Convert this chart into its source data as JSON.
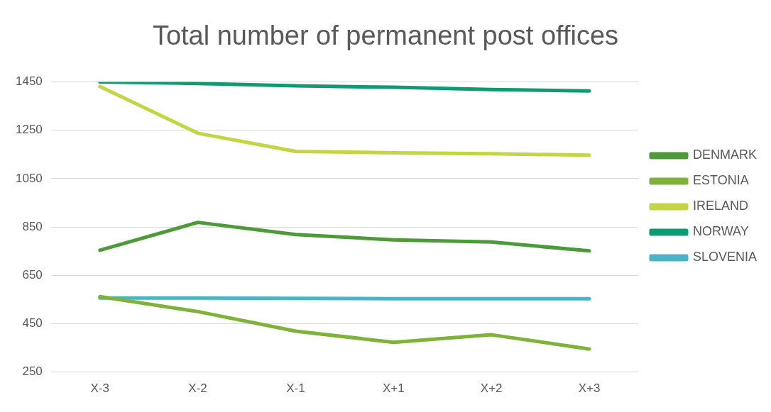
{
  "chart_data": {
    "type": "line",
    "title": "Total number of permanent post offices",
    "categories": [
      "X-3",
      "X-2",
      "X-1",
      "X+1",
      "X+2",
      "X+3"
    ],
    "series": [
      {
        "name": "DENMARK",
        "color": "#4e9a3a",
        "values": [
          754,
          869,
          819,
          797,
          788,
          751
        ]
      },
      {
        "name": "ESTONIA",
        "color": "#7fb23a",
        "values": [
          562,
          500,
          419,
          373,
          404,
          345
        ]
      },
      {
        "name": "IRELAND",
        "color": "#c3d544",
        "values": [
          1431,
          1238,
          1163,
          1157,
          1153,
          1147
        ]
      },
      {
        "name": "NORWAY",
        "color": "#109a72",
        "values": [
          1450,
          1444,
          1434,
          1428,
          1419,
          1413
        ]
      },
      {
        "name": "SLOVENIA",
        "color": "#4bb3c6",
        "values": [
          556,
          556,
          555,
          553,
          553,
          553
        ]
      }
    ],
    "ylim": [
      250,
      1450
    ],
    "yticks": [
      250,
      450,
      650,
      850,
      1050,
      1250,
      1450
    ],
    "grid": "y",
    "legend": "right",
    "marker": "none",
    "line_style": "solid"
  }
}
